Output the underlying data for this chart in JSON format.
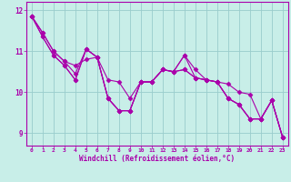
{
  "xlabel": "Windchill (Refroidissement éolien,°C)",
  "bg_color": "#c8eee8",
  "line_color": "#aa00aa",
  "grid_color": "#99cccc",
  "xlim": [
    -0.5,
    23.5
  ],
  "ylim": [
    8.7,
    12.2
  ],
  "yticks": [
    9,
    10,
    11,
    12
  ],
  "xticks": [
    0,
    1,
    2,
    3,
    4,
    5,
    6,
    7,
    8,
    9,
    10,
    11,
    12,
    13,
    14,
    15,
    16,
    17,
    18,
    19,
    20,
    21,
    22,
    23
  ],
  "series": [
    [
      11.85,
      11.45,
      11.0,
      10.75,
      10.65,
      10.8,
      10.85,
      10.3,
      10.25,
      9.85,
      10.25,
      10.25,
      10.55,
      10.5,
      10.9,
      10.55,
      10.3,
      10.25,
      10.2,
      10.0,
      9.95,
      9.35,
      9.8,
      8.9
    ],
    [
      11.85,
      11.35,
      10.9,
      10.65,
      10.3,
      11.05,
      10.85,
      9.85,
      9.55,
      9.55,
      10.25,
      10.25,
      10.55,
      10.5,
      10.55,
      10.35,
      10.3,
      10.25,
      9.85,
      9.7,
      9.35,
      9.35,
      9.8,
      8.9
    ],
    [
      11.85,
      11.35,
      10.9,
      10.65,
      10.3,
      11.05,
      10.85,
      9.85,
      9.55,
      9.55,
      10.25,
      10.25,
      10.55,
      10.5,
      10.55,
      10.35,
      10.3,
      10.25,
      9.85,
      9.7,
      9.35,
      9.35,
      9.8,
      8.9
    ],
    [
      11.85,
      11.45,
      11.0,
      10.75,
      10.45,
      11.05,
      10.85,
      9.85,
      9.55,
      9.55,
      10.25,
      10.25,
      10.55,
      10.5,
      10.9,
      10.35,
      10.3,
      10.25,
      9.85,
      9.7,
      9.35,
      9.35,
      9.8,
      8.9
    ]
  ],
  "marker": "D",
  "markersize": 2.5,
  "linewidth": 0.8
}
